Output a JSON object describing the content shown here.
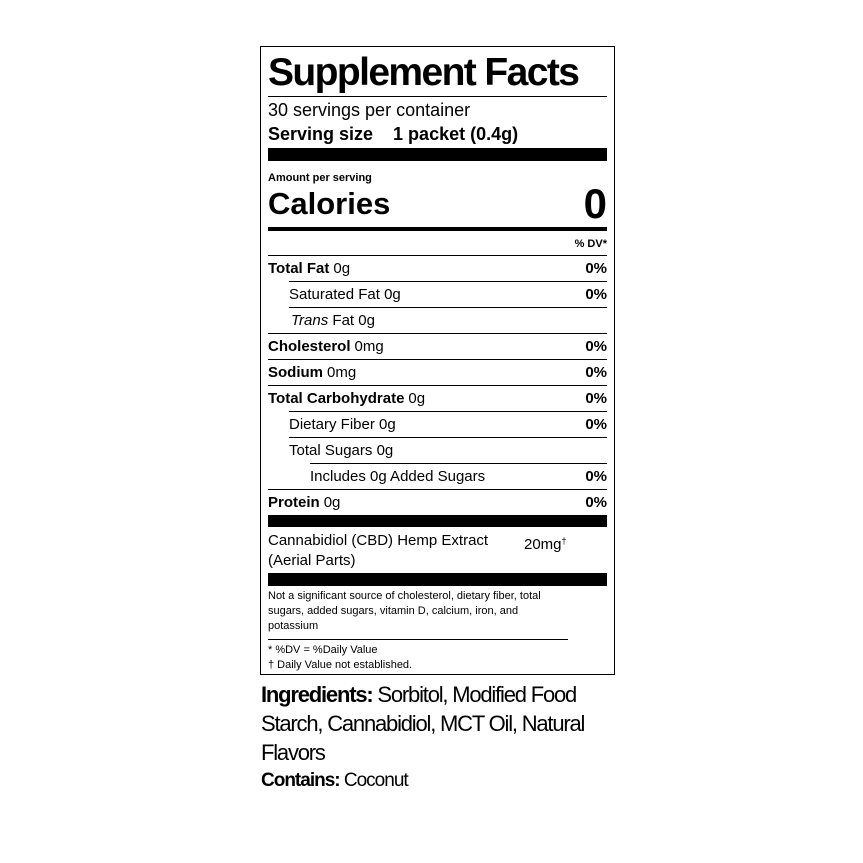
{
  "title": "Supplement Facts",
  "servings": "30 servings per container",
  "serving_size": {
    "label": "Serving size",
    "value": "1 packet (0.4g)"
  },
  "amount_per_serving": "Amount per serving",
  "calories": {
    "label": "Calories",
    "value": "0"
  },
  "dv_header": "% DV*",
  "nutrients": [
    {
      "name": "Total Fat",
      "amount": "0g",
      "dv": "0%"
    },
    {
      "name": "Saturated Fat",
      "amount": "0g",
      "dv": "0%"
    },
    {
      "name_italic": "Trans",
      "name": "Fat",
      "amount": "0g"
    },
    {
      "name": "Cholesterol",
      "amount": "0mg",
      "dv": "0%"
    },
    {
      "name": "Sodium",
      "amount": "0mg",
      "dv": "0%"
    },
    {
      "name": "Total Carbohydrate",
      "amount": "0g",
      "dv": "0%"
    },
    {
      "name": "Dietary Fiber",
      "amount": "0g",
      "dv": "0%"
    },
    {
      "name": "Total Sugars",
      "amount": "0g"
    },
    {
      "name": "Includes 0g Added Sugars",
      "dv": "0%"
    },
    {
      "name": "Protein",
      "amount": "0g",
      "dv": "0%"
    }
  ],
  "extract": {
    "name": "Cannabidiol (CBD) Hemp Extract",
    "detail": "(Aerial Parts)",
    "amount": "20mg",
    "mark": "†"
  },
  "note": "Not a significant source of cholesterol, dietary fiber, total sugars, added sugars, vitamin D, calcium, iron, and potassium",
  "footnotes": [
    "* %DV = %Daily Value",
    "† Daily Value not established."
  ],
  "ingredients": {
    "label": "Ingredients:",
    "text": "Sorbitol, Modified Food Starch, Cannabidiol, MCT Oil, Natural Flavors"
  },
  "contains": {
    "label": "Contains:",
    "text": "Coconut"
  }
}
